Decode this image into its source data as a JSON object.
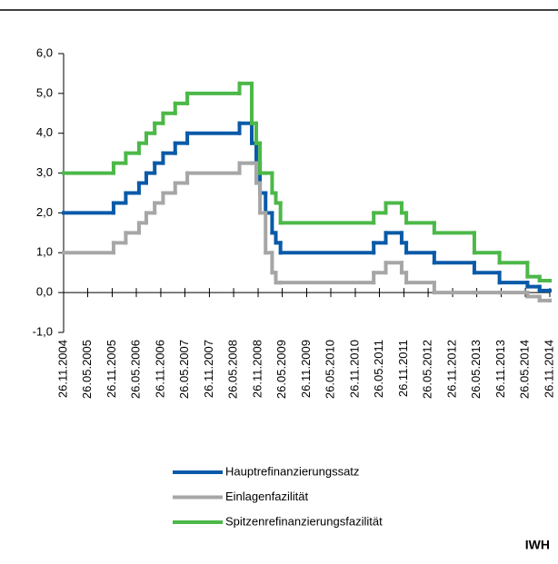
{
  "chart_data": {
    "type": "step",
    "x": [
      "26.11.2004",
      "06.12.2005",
      "08.03.2006",
      "15.06.2006",
      "09.08.2006",
      "11.10.2006",
      "13.12.2006",
      "14.03.2007",
      "13.06.2007",
      "09.07.2008",
      "09.10.2008",
      "12.11.2008",
      "10.12.2008",
      "21.01.2009",
      "11.03.2009",
      "08.04.2009",
      "13.05.2009",
      "13.04.2011",
      "13.07.2011",
      "09.11.2011",
      "14.12.2011",
      "11.07.2012",
      "08.05.2013",
      "13.11.2013",
      "11.06.2014",
      "10.09.2014",
      "26.11.2014"
    ],
    "series": [
      {
        "name": "Hauptrefinanzierungssatz",
        "color": "#0a5aa8",
        "values": [
          2.0,
          2.25,
          2.5,
          2.75,
          3.0,
          3.25,
          3.5,
          3.75,
          4.0,
          4.25,
          3.75,
          3.25,
          2.5,
          2.0,
          1.5,
          1.25,
          1.0,
          1.25,
          1.5,
          1.25,
          1.0,
          0.75,
          0.5,
          0.25,
          0.15,
          0.05,
          0.05
        ]
      },
      {
        "name": "Einlagenfazilität",
        "color": "#a6a6a6",
        "values": [
          1.0,
          1.25,
          1.5,
          1.75,
          2.0,
          2.25,
          2.5,
          2.75,
          3.0,
          3.25,
          3.25,
          2.75,
          2.0,
          1.0,
          0.5,
          0.25,
          0.25,
          0.5,
          0.75,
          0.5,
          0.25,
          0.0,
          0.0,
          0.0,
          -0.1,
          -0.2,
          -0.2
        ]
      },
      {
        "name": "Spitzenrefinanzierungsfazilität",
        "color": "#4cb848",
        "values": [
          3.0,
          3.25,
          3.5,
          3.75,
          4.0,
          4.25,
          4.5,
          4.75,
          5.0,
          5.25,
          4.25,
          3.75,
          3.0,
          3.0,
          2.5,
          2.25,
          1.75,
          2.0,
          2.25,
          2.0,
          1.75,
          1.5,
          1.0,
          0.75,
          0.4,
          0.3,
          0.3
        ]
      }
    ],
    "xlim": [
      "26.11.2004",
      "26.11.2014"
    ],
    "xticks": [
      "26.11.2004",
      "26.05.2005",
      "26.11.2005",
      "26.05.2006",
      "26.11.2006",
      "26.05.2007",
      "26.11.2007",
      "26.05.2008",
      "26.11.2008",
      "26.05.2009",
      "26.11.2009",
      "26.05.2010",
      "26.11.2010",
      "26.05.2011",
      "26.11.2011",
      "26.05.2012",
      "26.11.2012",
      "26.05.2013",
      "26.11.2013",
      "26.05.2014",
      "26.11.2014"
    ],
    "ylim": [
      -1,
      6
    ],
    "yticks": [
      {
        "value": -1,
        "label": "-1,0"
      },
      {
        "value": 0,
        "label": "0,0"
      },
      {
        "value": 1,
        "label": "1,0"
      },
      {
        "value": 2,
        "label": "2,0"
      },
      {
        "value": 3,
        "label": "3,0"
      },
      {
        "value": 4,
        "label": "4,0"
      },
      {
        "value": 5,
        "label": "5,0"
      },
      {
        "value": 6,
        "label": "6,0"
      }
    ],
    "source": "IWH"
  }
}
